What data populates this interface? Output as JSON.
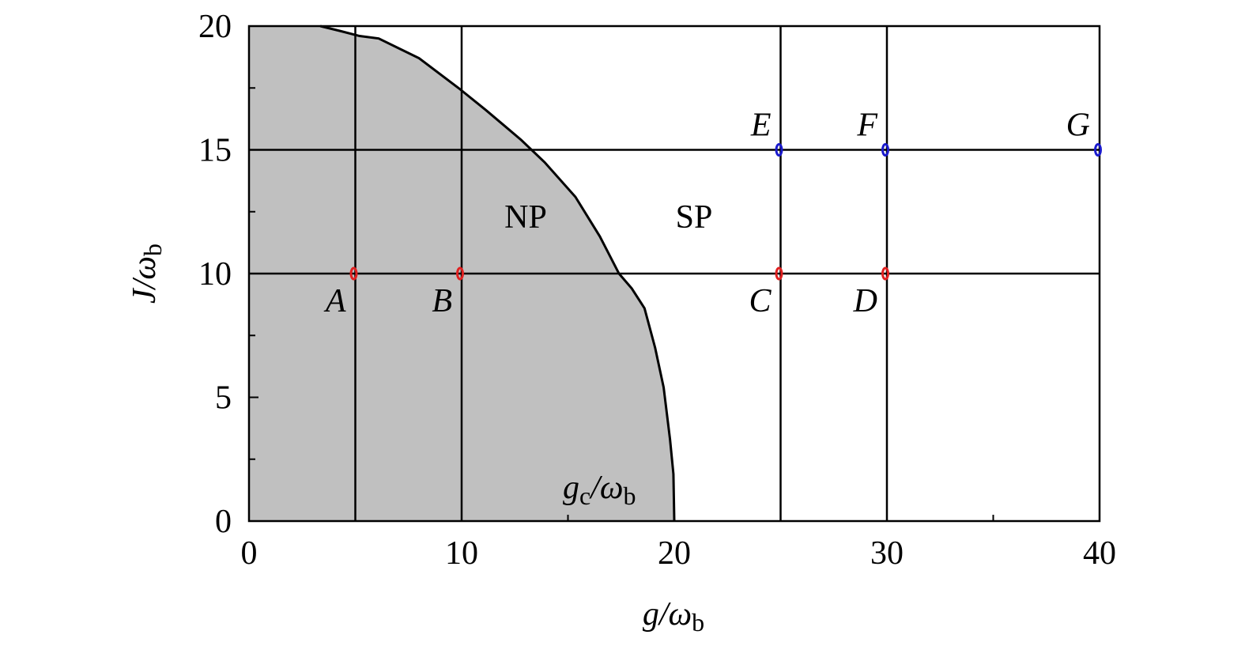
{
  "chart_data": {
    "type": "phase",
    "x_label": [
      "g/ω",
      "b"
    ],
    "y_label": [
      "J/ω",
      "b"
    ],
    "xlim": [
      0,
      40
    ],
    "ylim": [
      0,
      20
    ],
    "xticks": [
      0,
      10,
      20,
      30,
      40
    ],
    "yticks": [
      0,
      5,
      10,
      15,
      20
    ],
    "xminor": [
      5,
      15,
      25,
      35
    ],
    "yminor": [
      2.5,
      7.5,
      12.5,
      17.5
    ],
    "boundary": {
      "color": "#c0c0c0",
      "x": [
        3.35,
        4.3,
        5.2,
        6.1,
        8.0,
        9.85,
        11.15,
        12.8,
        13.9,
        15.35,
        16.5,
        17.4,
        18.0,
        18.6,
        19.1,
        19.5,
        19.8,
        19.96,
        20
      ],
      "y": [
        20,
        19.8,
        19.6,
        19.5,
        18.7,
        17.5,
        16.6,
        15.4,
        14.5,
        13.1,
        11.5,
        10.0,
        9.4,
        8.6,
        7.0,
        5.4,
        3.3,
        1.9,
        0
      ]
    },
    "vlines": [
      5,
      10,
      25,
      30
    ],
    "hlines": [
      10,
      15
    ],
    "regions": [
      "NP",
      "SP"
    ],
    "boundary_label": [
      "g",
      "c",
      "/ω",
      "b"
    ],
    "points": [
      {
        "label": "A",
        "x": 5,
        "y": 10,
        "color": "#e02020"
      },
      {
        "label": "B",
        "x": 10,
        "y": 10,
        "color": "#e02020"
      },
      {
        "label": "C",
        "x": 25,
        "y": 10,
        "color": "#e02020"
      },
      {
        "label": "D",
        "x": 30,
        "y": 10,
        "color": "#e02020"
      },
      {
        "label": "E",
        "x": 25,
        "y": 15,
        "color": "#1a1acc"
      },
      {
        "label": "F",
        "x": 30,
        "y": 15,
        "color": "#1a1acc"
      },
      {
        "label": "G",
        "x": 40,
        "y": 15,
        "color": "#1a1acc"
      }
    ]
  }
}
